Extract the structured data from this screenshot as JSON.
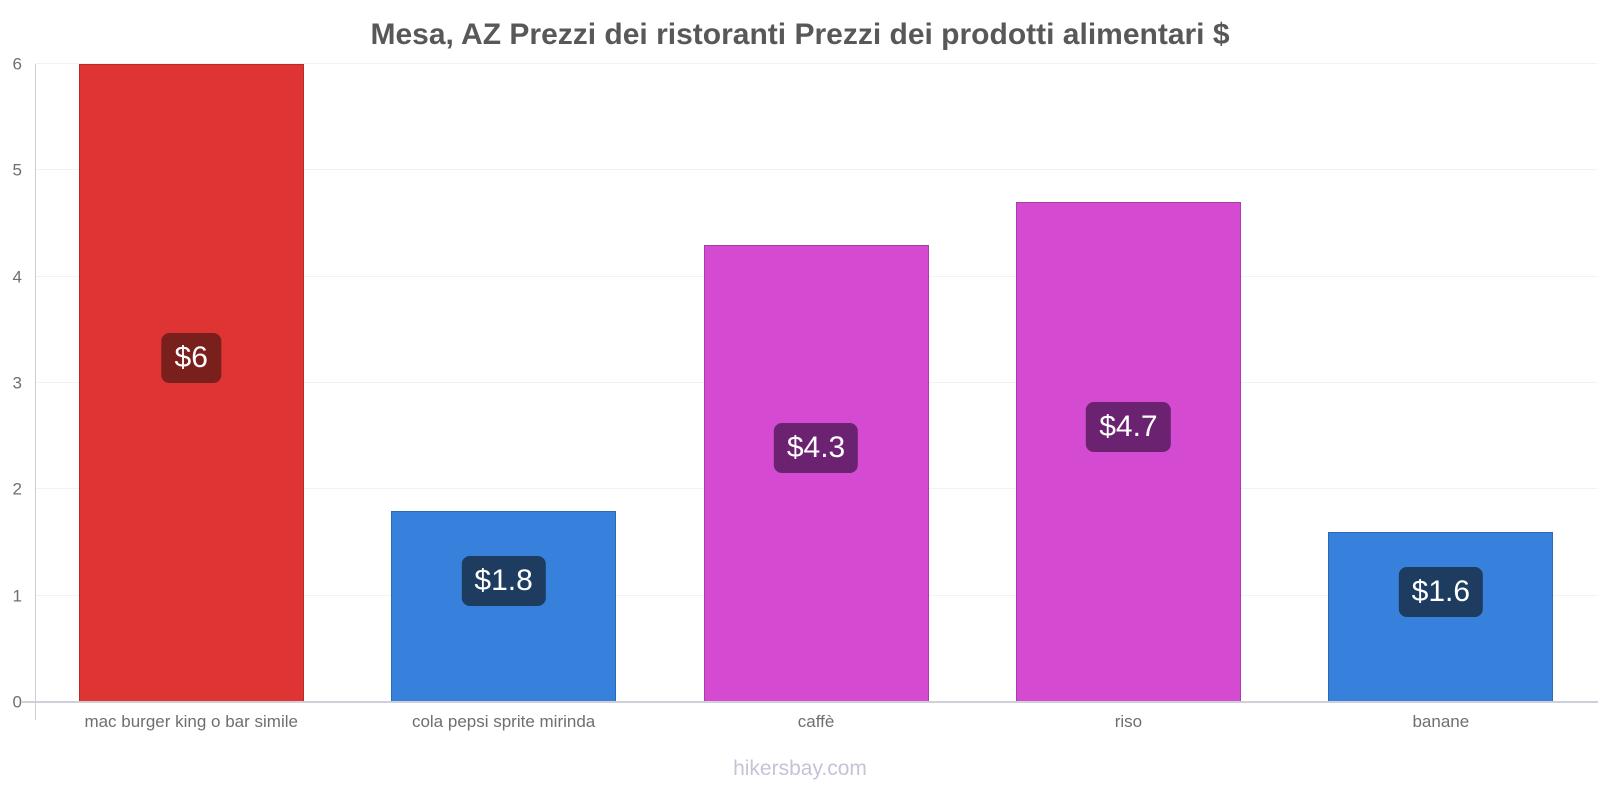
{
  "title": "Mesa, AZ Prezzi dei ristoranti Prezzi dei prodotti alimentari $",
  "footer": "hikersbay.com",
  "chart_data": {
    "type": "bar",
    "title": "Mesa, AZ Prezzi dei ristoranti Prezzi dei prodotti alimentari $",
    "xlabel": "",
    "ylabel": "",
    "ylim": [
      0,
      6
    ],
    "yticks": [
      "0",
      "1",
      "2",
      "3",
      "4",
      "5",
      "6"
    ],
    "grid": "horizontal",
    "legend": "none",
    "currency": "$",
    "categories": [
      "mac burger king o bar simile",
      "cola pepsi sprite mirinda",
      "caffè",
      "riso",
      "banane"
    ],
    "values": [
      6,
      1.8,
      4.3,
      4.7,
      1.6
    ],
    "bars": [
      {
        "category": "mac burger king o bar simile",
        "value": 6,
        "label": "$6",
        "color": "#df3434",
        "label_bg": "#79201d"
      },
      {
        "category": "cola pepsi sprite mirinda",
        "value": 1.8,
        "label": "$1.8",
        "color": "#3781dd",
        "label_bg": "#1d3c5f"
      },
      {
        "category": "caffè",
        "value": 4.3,
        "label": "$4.3",
        "color": "#d44ad1",
        "label_bg": "#6b2371"
      },
      {
        "category": "riso",
        "value": 4.7,
        "label": "$4.7",
        "color": "#d44ad1",
        "label_bg": "#6b2371"
      },
      {
        "category": "banane",
        "value": 1.6,
        "label": "$1.6",
        "color": "#3781dd",
        "label_bg": "#1d3c5f"
      }
    ],
    "colors": {
      "red_bar": "#df3434",
      "blue_bar": "#3781dd",
      "magenta_bar": "#d44ad1",
      "title_text": "#58585a",
      "axis_text": "#6f6f6f",
      "axis_line": "#ccccd4",
      "gridline": "#f2f2f2",
      "footer_text": "#c6c3d8"
    }
  }
}
